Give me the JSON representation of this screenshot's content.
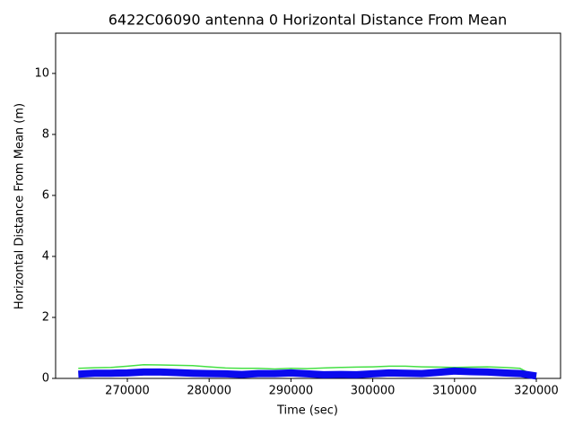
{
  "chart_data": {
    "type": "line",
    "title": "6422C06090 antenna 0 Horizontal Distance From Mean",
    "x_label": "Time (sec)",
    "y_label": "Horizontal Distance From Mean (m)",
    "x": [
      264000,
      266000,
      268000,
      270000,
      272000,
      274000,
      276000,
      278000,
      280000,
      282000,
      284000,
      286000,
      288000,
      290000,
      292000,
      294000,
      296000,
      298000,
      300000,
      302000,
      304000,
      306000,
      308000,
      310000,
      312000,
      314000,
      316000,
      318000,
      320000
    ],
    "series": [
      {
        "color": "#44e044",
        "values": [
          0.33,
          0.35,
          0.36,
          0.4,
          0.45,
          0.44,
          0.43,
          0.42,
          0.38,
          0.34,
          0.33,
          0.33,
          0.31,
          0.33,
          0.32,
          0.34,
          0.36,
          0.37,
          0.38,
          0.4,
          0.4,
          0.38,
          0.37,
          0.36,
          0.37,
          0.38,
          0.36,
          0.33,
          0.05
        ]
      },
      {
        "color": "#0a0aee",
        "values": [
          0.14,
          0.17,
          0.17,
          0.18,
          0.21,
          0.21,
          0.19,
          0.17,
          0.16,
          0.15,
          0.13,
          0.16,
          0.16,
          0.18,
          0.15,
          0.12,
          0.13,
          0.12,
          0.15,
          0.18,
          0.17,
          0.16,
          0.2,
          0.24,
          0.22,
          0.21,
          0.18,
          0.16,
          0.08
        ]
      }
    ],
    "xlim": [
      261228,
      322961
    ],
    "ylim": [
      0,
      11.32
    ],
    "xticks": [
      270000,
      280000,
      290000,
      300000,
      310000,
      320000
    ],
    "yticks": [
      0,
      2,
      4,
      6,
      8,
      10
    ]
  }
}
